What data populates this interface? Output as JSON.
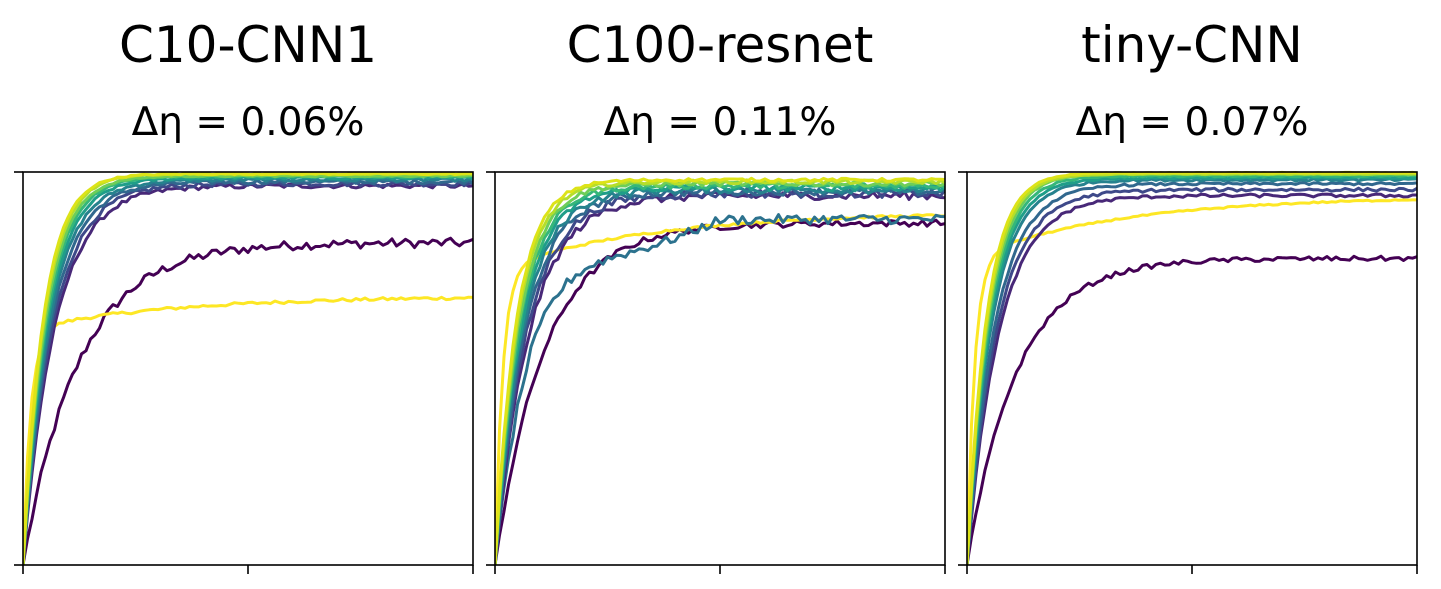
{
  "chart_data": [
    {
      "type": "line",
      "title": "C10-CNN1",
      "subtitle": "Δη = 0.06%",
      "x": [
        0,
        100
      ],
      "xlim": [
        0,
        100
      ],
      "ylim": [
        0,
        1
      ],
      "grid": false,
      "series": [
        {
          "color": "#440154",
          "start": 0.0,
          "final": 0.82,
          "k": 8,
          "noise": 0.012
        },
        {
          "color": "#fde725",
          "start": 0.0,
          "final": 0.68,
          "k": 35,
          "noise": 0.004,
          "knee": 0.6
        },
        {
          "color": "#482878",
          "start": 0.0,
          "final": 0.965,
          "k": 14,
          "noise": 0.006
        },
        {
          "color": "#3e4989",
          "start": 0.0,
          "final": 0.97,
          "k": 15,
          "noise": 0.006
        },
        {
          "color": "#31688e",
          "start": 0.0,
          "final": 0.975,
          "k": 16,
          "noise": 0.005
        },
        {
          "color": "#26828e",
          "start": 0.0,
          "final": 0.98,
          "k": 17,
          "noise": 0.004
        },
        {
          "color": "#1f9e89",
          "start": 0.0,
          "final": 0.985,
          "k": 18,
          "noise": 0.003
        },
        {
          "color": "#35b779",
          "start": 0.0,
          "final": 0.99,
          "k": 19,
          "noise": 0.003
        },
        {
          "color": "#6ece58",
          "start": 0.0,
          "final": 0.99,
          "k": 20,
          "noise": 0.002
        },
        {
          "color": "#b5de2b",
          "start": 0.0,
          "final": 0.995,
          "k": 21,
          "noise": 0.002
        },
        {
          "color": "#dde318",
          "start": 0.0,
          "final": 0.995,
          "k": 22,
          "noise": 0.002
        }
      ]
    },
    {
      "type": "line",
      "title": "C100-resnet",
      "subtitle": "Δη = 0.11%",
      "x": [
        0,
        100
      ],
      "xlim": [
        0,
        100
      ],
      "ylim": [
        0,
        1
      ],
      "grid": false,
      "series": [
        {
          "color": "#440154",
          "start": 0.0,
          "final": 0.87,
          "k": 9,
          "noise": 0.008
        },
        {
          "color": "#fde725",
          "start": 0.0,
          "final": 0.89,
          "k": 40,
          "noise": 0.003,
          "knee": 0.75
        },
        {
          "color": "#2c728e",
          "start": 0.0,
          "final": 0.88,
          "k": 12,
          "noise": 0.012,
          "dip": true
        },
        {
          "color": "#482878",
          "start": 0.0,
          "final": 0.94,
          "k": 13,
          "noise": 0.01
        },
        {
          "color": "#3e4989",
          "start": 0.0,
          "final": 0.945,
          "k": 14,
          "noise": 0.01
        },
        {
          "color": "#31688e",
          "start": 0.0,
          "final": 0.95,
          "k": 15,
          "noise": 0.009
        },
        {
          "color": "#26828e",
          "start": 0.0,
          "final": 0.955,
          "k": 16,
          "noise": 0.009
        },
        {
          "color": "#1f9e89",
          "start": 0.0,
          "final": 0.96,
          "k": 17,
          "noise": 0.008
        },
        {
          "color": "#35b779",
          "start": 0.0,
          "final": 0.965,
          "k": 18,
          "noise": 0.007
        },
        {
          "color": "#6ece58",
          "start": 0.0,
          "final": 0.97,
          "k": 19,
          "noise": 0.006
        },
        {
          "color": "#b5de2b",
          "start": 0.0,
          "final": 0.975,
          "k": 20,
          "noise": 0.005
        },
        {
          "color": "#dde318",
          "start": 0.0,
          "final": 0.98,
          "k": 21,
          "noise": 0.004
        }
      ]
    },
    {
      "type": "line",
      "title": "tiny-CNN",
      "subtitle": "Δη = 0.07%",
      "x": [
        0,
        100
      ],
      "xlim": [
        0,
        100
      ],
      "ylim": [
        0,
        1
      ],
      "grid": false,
      "series": [
        {
          "color": "#440154",
          "start": 0.0,
          "final": 0.78,
          "k": 9,
          "noise": 0.006
        },
        {
          "color": "#fde725",
          "start": 0.0,
          "final": 0.93,
          "k": 30,
          "noise": 0.002,
          "knee": 0.78
        },
        {
          "color": "#482878",
          "start": 0.0,
          "final": 0.94,
          "k": 14,
          "noise": 0.004
        },
        {
          "color": "#3e4989",
          "start": 0.0,
          "final": 0.955,
          "k": 15,
          "noise": 0.004
        },
        {
          "color": "#31688e",
          "start": 0.0,
          "final": 0.97,
          "k": 16,
          "noise": 0.003
        },
        {
          "color": "#26828e",
          "start": 0.0,
          "final": 0.98,
          "k": 18,
          "noise": 0.003
        },
        {
          "color": "#1f9e89",
          "start": 0.0,
          "final": 0.985,
          "k": 19,
          "noise": 0.002
        },
        {
          "color": "#35b779",
          "start": 0.0,
          "final": 0.99,
          "k": 20,
          "noise": 0.002
        },
        {
          "color": "#6ece58",
          "start": 0.0,
          "final": 0.995,
          "k": 21,
          "noise": 0.002
        },
        {
          "color": "#b5de2b",
          "start": 0.0,
          "final": 0.995,
          "k": 22,
          "noise": 0.001
        },
        {
          "color": "#dde318",
          "start": 0.0,
          "final": 0.998,
          "k": 23,
          "noise": 0.001
        }
      ]
    }
  ]
}
